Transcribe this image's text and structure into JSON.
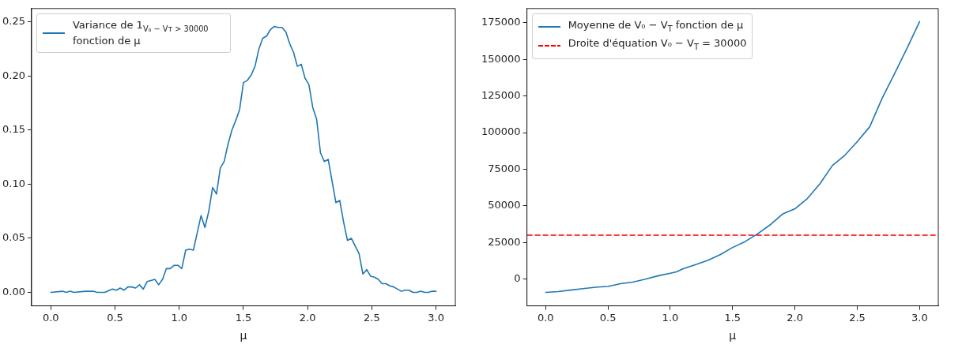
{
  "chart_data": [
    {
      "type": "line",
      "xlabel": "μ",
      "legend": "top left",
      "line_style": "solid",
      "marker": "none",
      "grid": false,
      "xlim": [
        -0.15,
        3.15
      ],
      "ylim": [
        -0.0125,
        0.2625
      ],
      "xticks": [
        {
          "value": 0,
          "label": "0.0"
        },
        {
          "value": 0.5,
          "label": "0.5"
        },
        {
          "value": 1,
          "label": "1.0"
        },
        {
          "value": 1.5,
          "label": "1.5"
        },
        {
          "value": 2,
          "label": "2.0"
        },
        {
          "value": 2.5,
          "label": "2.5"
        },
        {
          "value": 3,
          "label": "3.0"
        }
      ],
      "yticks": [
        {
          "value": 0,
          "label": "0.00"
        },
        {
          "value": 0.05,
          "label": "0.05"
        },
        {
          "value": 0.1,
          "label": "0.10"
        },
        {
          "value": 0.15,
          "label": "0.15"
        },
        {
          "value": 0.2,
          "label": "0.20"
        },
        {
          "value": 0.25,
          "label": "0.25"
        }
      ],
      "series": [
        {
          "name": "Variance de 1$_{V₀ − Vᴛ > 30000}$ fonction de μ",
          "color": "#1f77b4",
          "x": [
            0,
            0.09,
            0.12,
            0.15,
            0.18,
            0.27,
            0.33,
            0.36,
            0.42,
            0.48,
            0.51,
            0.54,
            0.57,
            0.6,
            0.63,
            0.66,
            0.69,
            0.72,
            0.75,
            0.78,
            0.81,
            0.84,
            0.87,
            0.9,
            0.93,
            0.96,
            0.99,
            1.02,
            1.05,
            1.08,
            1.11,
            1.14,
            1.17,
            1.2,
            1.23,
            1.26,
            1.29,
            1.32,
            1.35,
            1.38,
            1.41,
            1.44,
            1.47,
            1.5,
            1.53,
            1.56,
            1.59,
            1.62,
            1.65,
            1.68,
            1.71,
            1.74,
            1.77,
            1.8,
            1.83,
            1.86,
            1.89,
            1.92,
            1.95,
            1.98,
            2.01,
            2.04,
            2.07,
            2.1,
            2.13,
            2.16,
            2.19,
            2.22,
            2.25,
            2.28,
            2.31,
            2.34,
            2.37,
            2.4,
            2.43,
            2.46,
            2.49,
            2.52,
            2.55,
            2.58,
            2.61,
            2.64,
            2.67,
            2.7,
            2.73,
            2.76,
            2.79,
            2.82,
            2.85,
            2.88,
            2.91,
            2.94,
            2.97,
            3.0
          ],
          "values": [
            0,
            0.001,
            0,
            0.001,
            0,
            0.001,
            0.001,
            0,
            0,
            0.003,
            0.002,
            0.004,
            0.002,
            0.005,
            0.005,
            0.004,
            0.007,
            0.003,
            0.01,
            0.011,
            0.012,
            0.007,
            0.012,
            0.022,
            0.022,
            0.025,
            0.025,
            0.022,
            0.039,
            0.04,
            0.039,
            0.055,
            0.071,
            0.06,
            0.075,
            0.097,
            0.091,
            0.115,
            0.121,
            0.137,
            0.15,
            0.159,
            0.169,
            0.194,
            0.196,
            0.201,
            0.209,
            0.225,
            0.235,
            0.237,
            0.243,
            0.246,
            0.245,
            0.245,
            0.241,
            0.23,
            0.222,
            0.209,
            0.211,
            0.198,
            0.192,
            0.171,
            0.16,
            0.129,
            0.121,
            0.123,
            0.103,
            0.083,
            0.085,
            0.065,
            0.048,
            0.05,
            0.043,
            0.036,
            0.017,
            0.021,
            0.015,
            0.014,
            0.012,
            0.008,
            0.008,
            0.006,
            0.005,
            0.003,
            0.001,
            0.002,
            0.002,
            0,
            0,
            0.001,
            0,
            0,
            0.001,
            0.001
          ]
        }
      ]
    },
    {
      "type": "line",
      "xlabel": "μ",
      "legend": "top left",
      "line_style": "solid",
      "marker": "none",
      "grid": false,
      "xlim": [
        -0.15,
        3.15
      ],
      "ylim": [
        -18250,
        184700
      ],
      "xticks": [
        {
          "value": 0,
          "label": "0.0"
        },
        {
          "value": 0.5,
          "label": "0.5"
        },
        {
          "value": 1,
          "label": "1.0"
        },
        {
          "value": 1.5,
          "label": "1.5"
        },
        {
          "value": 2,
          "label": "2.0"
        },
        {
          "value": 2.5,
          "label": "2.5"
        },
        {
          "value": 3,
          "label": "3.0"
        }
      ],
      "yticks": [
        0,
        25000,
        50000,
        75000,
        100000,
        125000,
        150000,
        175000
      ],
      "series": [
        {
          "name": "Moyenne de V₀ − V$_{T}$ fonction de μ",
          "color": "#1f77b4",
          "x": [
            0,
            0.1,
            0.2,
            0.3,
            0.4,
            0.5,
            0.6,
            0.7,
            0.8,
            0.9,
            1.0,
            1.05,
            1.1,
            1.2,
            1.3,
            1.4,
            1.5,
            1.6,
            1.7,
            1.8,
            1.9,
            2.0,
            2.1,
            2.2,
            2.3,
            2.4,
            2.5,
            2.6,
            2.7,
            2.8,
            2.9,
            3.0
          ],
          "values": [
            -9000,
            -8500,
            -7500,
            -6500,
            -5500,
            -5000,
            -3100,
            -2000,
            0,
            2200,
            4000,
            5000,
            7000,
            9800,
            12800,
            16700,
            21600,
            25600,
            30900,
            37000,
            44400,
            48000,
            55000,
            65000,
            77500,
            84500,
            93800,
            104000,
            123500,
            140400,
            157700,
            175800
          ]
        }
      ],
      "ref_lines": [
        {
          "axis": "y",
          "value": 30000,
          "label": "Droite d'équation V₀ − V$_{T}$ = 30000",
          "color": "#ff0000",
          "line_style": "dashed"
        }
      ]
    }
  ]
}
